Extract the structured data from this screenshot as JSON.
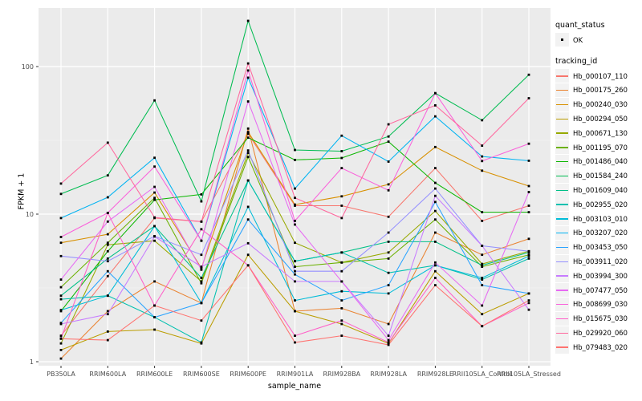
{
  "figure": {
    "panel_bg": "#EBEBEB",
    "grid_major_color": "#FFFFFF",
    "grid_minor_color": "#F5F5F5",
    "tick_label_color": "#4D4D4D",
    "point_color": "#000000",
    "legend_key_bg": "#F2F2F2"
  },
  "axes": {
    "x_title": "sample_name",
    "y_title": "FPKM + 1",
    "y_tick_labels": [
      "1",
      "10",
      "100"
    ],
    "y_tick_values": [
      1,
      10,
      100
    ],
    "y_minor_values": [
      3.1623,
      31.623
    ]
  },
  "legend": {
    "quant_title": "quant_status",
    "quant_items": [
      {
        "label": "OK",
        "marker": "black-point"
      }
    ],
    "tracking_title": "tracking_id"
  },
  "chart_data": {
    "type": "line",
    "xlabel": "sample_name",
    "ylabel": "FPKM + 1",
    "y_scale": "log10",
    "ylim": [
      0.95,
      230
    ],
    "grid": true,
    "legend_position": "right",
    "quant_status": "OK",
    "categories": [
      "PB350LA",
      "RRIM600LA",
      "RRIM600LE",
      "RRIM600SE",
      "RRIM600PE",
      "RRIM901LA",
      "RRIM928BA",
      "RRIM928LA",
      "RRIM928LE",
      "RRII105LA_Control",
      "RRII105LA_Stressed"
    ],
    "series": [
      {
        "name": "Hb_000107_110",
        "color": "#F8766D",
        "values": [
          1.5,
          3.8,
          9.4,
          8.9,
          35,
          11.4,
          11.4,
          9.6,
          20.5,
          9.0,
          11.4
        ]
      },
      {
        "name": "Hb_000175_260",
        "color": "#EA8331",
        "values": [
          1.05,
          2.2,
          3.5,
          2.5,
          38,
          2.2,
          2.3,
          1.8,
          7.5,
          5.3,
          6.8
        ]
      },
      {
        "name": "Hb_000240_030",
        "color": "#D89000",
        "values": [
          6.4,
          7.3,
          14,
          4.3,
          36,
          11.6,
          13.2,
          15.9,
          28.5,
          19.7,
          15.5
        ]
      },
      {
        "name": "Hb_000294_050",
        "color": "#BB9D00",
        "values": [
          1.2,
          1.6,
          1.65,
          1.33,
          5.3,
          2.2,
          1.8,
          1.33,
          4.1,
          2.1,
          2.9
        ]
      },
      {
        "name": "Hb_000671_130",
        "color": "#97A900",
        "values": [
          1.33,
          6.2,
          6.6,
          3.5,
          26,
          6.4,
          4.7,
          5.5,
          10.5,
          4.6,
          5.6
        ]
      },
      {
        "name": "Hb_001195_070",
        "color": "#6BB100",
        "values": [
          3.2,
          6.4,
          12.9,
          3.4,
          24.4,
          4.4,
          4.7,
          5.0,
          9.2,
          4.4,
          5.3
        ]
      },
      {
        "name": "Hb_001486_040",
        "color": "#0CB702",
        "values": [
          2.2,
          5.6,
          12.5,
          13.6,
          33,
          23.3,
          24,
          31,
          16.3,
          10.3,
          10.3
        ]
      },
      {
        "name": "Hb_001584_240",
        "color": "#00BC51",
        "values": [
          13.7,
          18.3,
          59,
          12.2,
          204,
          27.2,
          26.7,
          33.6,
          66,
          43.3,
          88
        ]
      },
      {
        "name": "Hb_001609_040",
        "color": "#00C087",
        "values": [
          2.8,
          5.0,
          8.3,
          3.7,
          16.9,
          4.8,
          5.5,
          6.5,
          6.5,
          4.5,
          5.5
        ]
      },
      {
        "name": "Hb_002955_020",
        "color": "#00C0AF",
        "values": [
          2.65,
          2.8,
          2.0,
          1.35,
          16.9,
          4.8,
          5.5,
          4.0,
          4.5,
          3.6,
          5.0
        ]
      },
      {
        "name": "Hb_003103_010",
        "color": "#00BCD8",
        "values": [
          2.24,
          2.8,
          8.3,
          2.5,
          11.2,
          2.6,
          3.0,
          2.9,
          4.5,
          3.7,
          5.2
        ]
      },
      {
        "name": "Hb_003207_020",
        "color": "#00B3F2",
        "values": [
          9.4,
          13,
          24.1,
          6.6,
          84,
          14.9,
          34,
          22.7,
          46,
          24.6,
          23
        ]
      },
      {
        "name": "Hb_003453_050",
        "color": "#29A3FF",
        "values": [
          1.83,
          4.1,
          2.0,
          2.5,
          9.2,
          3.9,
          2.6,
          3.3,
          12.1,
          3.3,
          2.9
        ]
      },
      {
        "name": "Hb_003911_020",
        "color": "#9590FF",
        "values": [
          5.2,
          4.8,
          7.1,
          5.3,
          27,
          4.1,
          4.1,
          7.5,
          14.9,
          6.1,
          5.6
        ]
      },
      {
        "name": "Hb_003994_300",
        "color": "#C77CFF",
        "values": [
          1.8,
          2.1,
          7.05,
          4.4,
          6.35,
          3.5,
          3.5,
          1.5,
          13.3,
          6.1,
          2.25
        ]
      },
      {
        "name": "Hb_007477_050",
        "color": "#E76BF3",
        "values": [
          3.6,
          8.9,
          15.3,
          4.2,
          58,
          8.5,
          3.5,
          1.4,
          4.7,
          2.4,
          14.1
        ]
      },
      {
        "name": "Hb_008699_030",
        "color": "#FA62DB",
        "values": [
          7.0,
          10.2,
          21,
          6.6,
          94,
          9.0,
          20.5,
          14.5,
          66,
          22.9,
          30
        ]
      },
      {
        "name": "Hb_015675_030",
        "color": "#FF61C9",
        "values": [
          1.44,
          10.2,
          2.4,
          7.9,
          4.5,
          1.5,
          1.9,
          1.35,
          3.7,
          1.74,
          2.5
        ]
      },
      {
        "name": "Hb_029920_060",
        "color": "#FF689E",
        "values": [
          16.1,
          30.5,
          9.5,
          8.9,
          105,
          12.9,
          9.4,
          40.6,
          54.6,
          29.1,
          61
        ]
      },
      {
        "name": "Hb_079483_020",
        "color": "#FF7370",
        "values": [
          1.43,
          1.4,
          2.4,
          1.9,
          4.5,
          1.35,
          1.5,
          1.3,
          3.3,
          1.74,
          2.6
        ]
      }
    ]
  }
}
